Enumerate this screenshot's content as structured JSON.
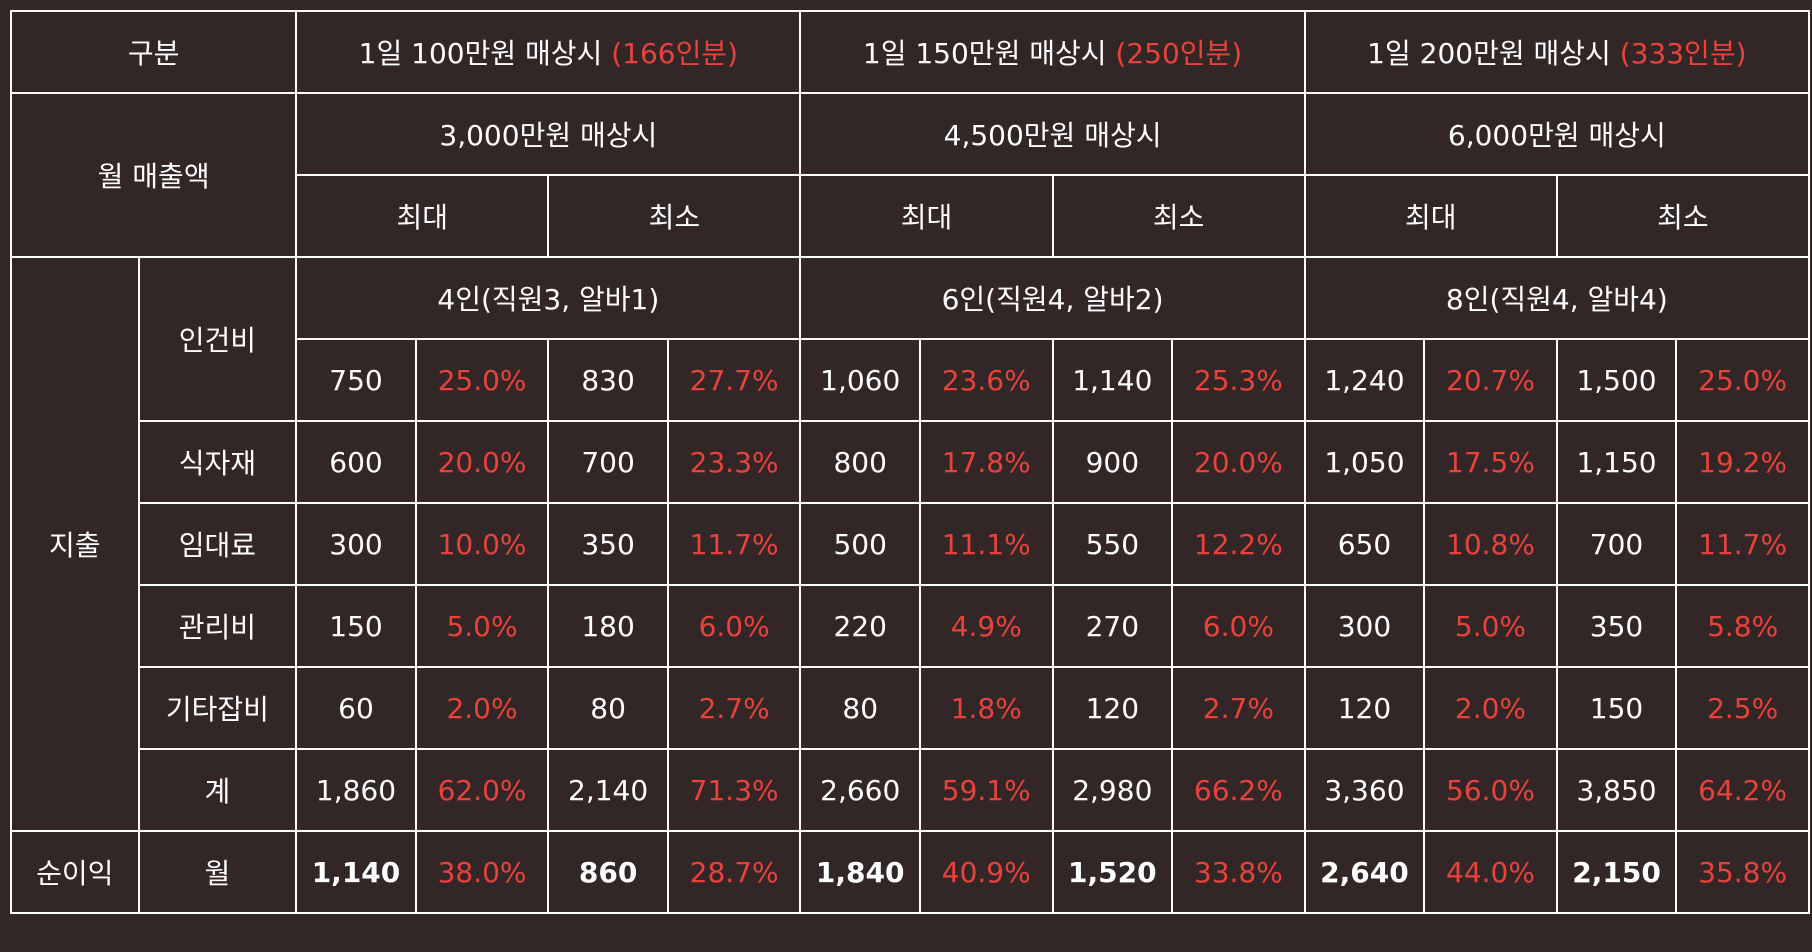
{
  "colors": {
    "background": "#332626",
    "text": "#ffffff",
    "accent": "#e8423c",
    "border": "#ffffff"
  },
  "header": {
    "category": "구분",
    "scenarios": [
      {
        "label": "1일 100만원 매상시",
        "note": "(166인분)"
      },
      {
        "label": "1일 150만원 매상시",
        "note": "(250인분)"
      },
      {
        "label": "1일 200만원 매상시",
        "note": "(333인분)"
      }
    ]
  },
  "monthly_sales": {
    "label": "월 매출액",
    "values": [
      "3,000만원 매상시",
      "4,500만원 매상시",
      "6,000만원 매상시"
    ],
    "max_label": "최대",
    "min_label": "최소"
  },
  "expenses": {
    "label": "지출",
    "labor": {
      "label": "인건비",
      "staffing": [
        "4인(직원3, 알바1)",
        "6인(직원4, 알바2)",
        "8인(직원4, 알바4)"
      ],
      "cells": [
        [
          "750",
          "25.0%"
        ],
        [
          "830",
          "27.7%"
        ],
        [
          "1,060",
          "23.6%"
        ],
        [
          "1,140",
          "25.3%"
        ],
        [
          "1,240",
          "20.7%"
        ],
        [
          "1,500",
          "25.0%"
        ]
      ]
    },
    "rows": [
      {
        "label": "식자재",
        "cells": [
          [
            "600",
            "20.0%"
          ],
          [
            "700",
            "23.3%"
          ],
          [
            "800",
            "17.8%"
          ],
          [
            "900",
            "20.0%"
          ],
          [
            "1,050",
            "17.5%"
          ],
          [
            "1,150",
            "19.2%"
          ]
        ]
      },
      {
        "label": "임대료",
        "cells": [
          [
            "300",
            "10.0%"
          ],
          [
            "350",
            "11.7%"
          ],
          [
            "500",
            "11.1%"
          ],
          [
            "550",
            "12.2%"
          ],
          [
            "650",
            "10.8%"
          ],
          [
            "700",
            "11.7%"
          ]
        ]
      },
      {
        "label": "관리비",
        "cells": [
          [
            "150",
            "5.0%"
          ],
          [
            "180",
            "6.0%"
          ],
          [
            "220",
            "4.9%"
          ],
          [
            "270",
            "6.0%"
          ],
          [
            "300",
            "5.0%"
          ],
          [
            "350",
            "5.8%"
          ]
        ]
      },
      {
        "label": "기타잡비",
        "cells": [
          [
            "60",
            "2.0%"
          ],
          [
            "80",
            "2.7%"
          ],
          [
            "80",
            "1.8%"
          ],
          [
            "120",
            "2.7%"
          ],
          [
            "120",
            "2.0%"
          ],
          [
            "150",
            "2.5%"
          ]
        ]
      },
      {
        "label": "계",
        "cells": [
          [
            "1,860",
            "62.0%"
          ],
          [
            "2,140",
            "71.3%"
          ],
          [
            "2,660",
            "59.1%"
          ],
          [
            "2,980",
            "66.2%"
          ],
          [
            "3,360",
            "56.0%"
          ],
          [
            "3,850",
            "64.2%"
          ]
        ]
      }
    ]
  },
  "net_profit": {
    "label": "순이익",
    "sub_label": "월",
    "cells": [
      [
        "1,140",
        "38.0%"
      ],
      [
        "860",
        "28.7%"
      ],
      [
        "1,840",
        "40.9%"
      ],
      [
        "1,520",
        "33.8%"
      ],
      [
        "2,640",
        "44.0%"
      ],
      [
        "2,150",
        "35.8%"
      ]
    ]
  }
}
